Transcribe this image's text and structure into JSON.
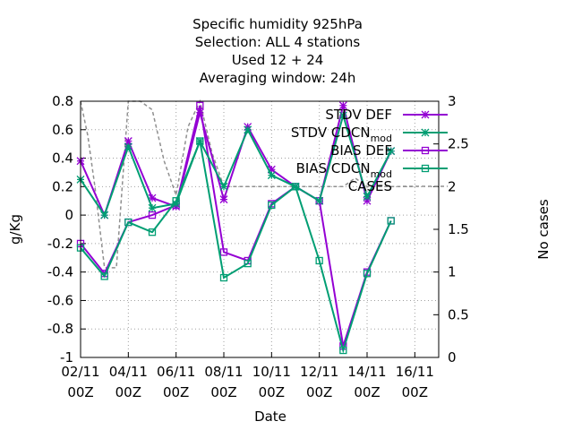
{
  "chart_data": {
    "type": "line",
    "title_lines": [
      "Specific humidity 925hPa",
      "Selection: ALL       4 stations",
      "Used  12 + 24",
      "Averaging window: 24h"
    ],
    "xlabel": "Date",
    "ylabel": "g/Kg",
    "y2label": "No cases",
    "xlim": [
      0,
      15
    ],
    "ylim": [
      -1,
      0.8
    ],
    "y2lim": [
      0,
      3
    ],
    "xticks": [
      {
        "x": 0,
        "l1": "02/11",
        "l2": "00Z"
      },
      {
        "x": 2,
        "l1": "04/11",
        "l2": "00Z"
      },
      {
        "x": 4,
        "l1": "06/11",
        "l2": "00Z"
      },
      {
        "x": 6,
        "l1": "08/11",
        "l2": "00Z"
      },
      {
        "x": 8,
        "l1": "10/11",
        "l2": "00Z"
      },
      {
        "x": 10,
        "l1": "12/11",
        "l2": "00Z"
      },
      {
        "x": 12,
        "l1": "14/11",
        "l2": "00Z"
      },
      {
        "x": 14,
        "l1": "16/11",
        "l2": "00Z"
      }
    ],
    "yticks": [
      "0.8",
      "0.6",
      "0.4",
      "0.2",
      "0",
      "-0.2",
      "-0.4",
      "-0.6",
      "-0.8",
      "-1"
    ],
    "ytick_values": [
      0.8,
      0.6,
      0.4,
      0.2,
      0,
      -0.2,
      -0.4,
      -0.6,
      -0.8,
      -1
    ],
    "y2ticks": [
      "3",
      "2.5",
      "2",
      "1.5",
      "1",
      "0.5",
      "0"
    ],
    "y2tick_values": [
      3,
      2.5,
      2,
      1.5,
      1,
      0.5,
      0
    ],
    "grid": true,
    "legend_position": "top-right",
    "series": [
      {
        "name": "STDV DEF",
        "color": "#9400d3",
        "marker": "star",
        "axis": "y",
        "x": [
          0,
          1,
          2,
          3,
          4,
          5,
          6,
          7,
          8,
          9,
          10,
          11,
          12,
          13
        ],
        "y": [
          0.38,
          0.0,
          0.52,
          0.12,
          0.06,
          0.72,
          0.11,
          0.62,
          0.32,
          0.2,
          0.1,
          0.77,
          0.1,
          0.45
        ]
      },
      {
        "name": "STDV CDCN_mod",
        "color": "#009e73",
        "marker": "star",
        "axis": "y",
        "x": [
          0,
          1,
          2,
          3,
          4,
          5,
          6,
          7,
          8,
          9,
          10,
          11,
          12,
          13
        ],
        "y": [
          0.25,
          0.0,
          0.48,
          0.05,
          0.08,
          0.52,
          0.2,
          0.6,
          0.28,
          0.2,
          0.1,
          0.7,
          0.13,
          0.45
        ]
      },
      {
        "name": "BIAS DEF",
        "color": "#9400d3",
        "marker": "square",
        "axis": "y",
        "x": [
          0,
          1,
          2,
          3,
          4,
          5,
          6,
          7,
          8,
          9,
          10,
          11,
          12,
          13,
          14
        ],
        "y": [
          -0.2,
          -0.41,
          -0.05,
          0.0,
          0.07,
          0.77,
          -0.26,
          -0.32,
          0.08,
          0.2,
          0.1,
          -0.92,
          -0.4,
          -0.04,
          null
        ]
      },
      {
        "name": "BIAS CDCN_mod",
        "color": "#009e73",
        "marker": "square",
        "axis": "y",
        "x": [
          0,
          1,
          2,
          3,
          4,
          5,
          6,
          7,
          8,
          9,
          10,
          11,
          12,
          13,
          14
        ],
        "y": [
          -0.23,
          -0.43,
          -0.05,
          -0.12,
          0.1,
          0.52,
          -0.44,
          -0.34,
          0.07,
          0.2,
          -0.32,
          -0.95,
          -0.41,
          -0.04,
          null
        ]
      },
      {
        "name": "CASES",
        "color": "#909090",
        "marker": "none",
        "axis": "y2",
        "dash": true,
        "x": [
          0,
          0.3,
          0.6,
          1,
          1.5,
          2,
          2.5,
          3,
          3.5,
          4,
          4.5,
          5,
          5.5,
          6,
          7,
          8,
          9,
          10,
          11,
          11.5,
          12,
          13,
          14
        ],
        "y": [
          3,
          2.6,
          2,
          1.05,
          1.05,
          3,
          3,
          2.9,
          2.3,
          1.9,
          2.7,
          3,
          2.4,
          2,
          2,
          2,
          2,
          2,
          2,
          2.1,
          2,
          2,
          2
        ]
      }
    ],
    "legend": [
      {
        "label": "STDV DEF",
        "series": 0
      },
      {
        "label": "STDV CDCN",
        "sub": "mod",
        "series": 1
      },
      {
        "label": "BIAS DEF",
        "series": 2
      },
      {
        "label": "BIAS CDCN",
        "sub": "mod",
        "series": 3
      },
      {
        "label": "CASES",
        "series": 4
      }
    ]
  }
}
